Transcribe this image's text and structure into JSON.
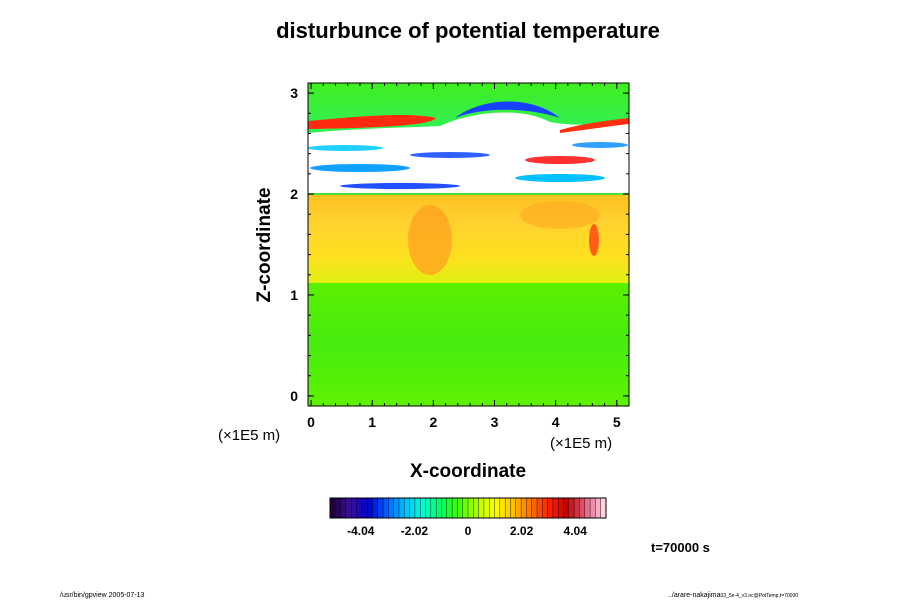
{
  "chart_data": {
    "type": "heatmap",
    "title": "disturbunce of potential temperature",
    "xlabel": "X-coordinate",
    "ylabel": "Z-coordinate",
    "x_unit": "(×1E5  m)",
    "y_unit": "(×1E5  m)",
    "xlim": [
      -0.05,
      5.2
    ],
    "ylim": [
      -0.1,
      3.1
    ],
    "x_ticks": [
      "0",
      "1",
      "2",
      "3",
      "4",
      "5"
    ],
    "y_ticks": [
      "0",
      "1",
      "2",
      "3"
    ],
    "colorbar": {
      "range": [
        -5.2,
        5.2
      ],
      "ticks": [
        "-4.04",
        "-2.02",
        "0",
        "2.02",
        "4.04"
      ],
      "colors": [
        "#200040",
        "#3a10a0",
        "#0000d0",
        "#0060ff",
        "#00c0ff",
        "#00ffd0",
        "#00ff60",
        "#40ff00",
        "#b0ff00",
        "#ffff00",
        "#ffc000",
        "#ff7000",
        "#ff2000",
        "#c00000",
        "#e06080",
        "#ffd0e0"
      ]
    },
    "regions": [
      {
        "z_range": [
          0.0,
          1.05
        ],
        "value": 0.3,
        "description": "green"
      },
      {
        "z_range": [
          1.05,
          2.0
        ],
        "value": 2.8,
        "description": "yellow-orange"
      },
      {
        "z_range": [
          2.0,
          3.1
        ],
        "value": "out of range (white) with blue/red bands"
      }
    ],
    "time_label": "t=70000 s"
  },
  "footer": {
    "left": "/usr/bin/gpview 2005-07-13",
    "right": "../arare-nakajima",
    "right_small": "03_5e-4_v3.nc@PotTemp,t=70000"
  }
}
